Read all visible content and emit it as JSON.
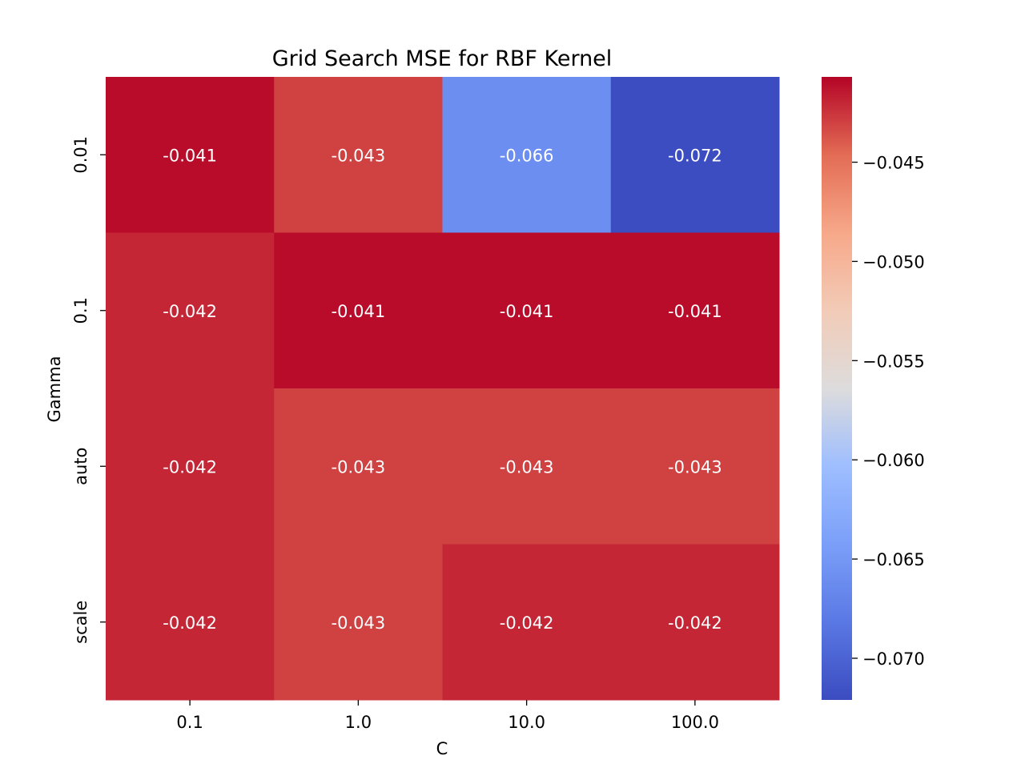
{
  "chart_data": {
    "type": "heatmap",
    "title": "Grid Search MSE for RBF Kernel",
    "xlabel": "C",
    "ylabel": "Gamma",
    "x_categories": [
      "0.1",
      "1.0",
      "10.0",
      "100.0"
    ],
    "y_categories": [
      "0.01",
      "0.1",
      "auto",
      "scale"
    ],
    "values": [
      [
        -0.041,
        -0.043,
        -0.066,
        -0.072
      ],
      [
        -0.042,
        -0.041,
        -0.041,
        -0.041
      ],
      [
        -0.042,
        -0.043,
        -0.043,
        -0.043
      ],
      [
        -0.042,
        -0.043,
        -0.042,
        -0.042
      ]
    ],
    "cell_labels": [
      [
        "-0.041",
        "-0.043",
        "-0.066",
        "-0.072"
      ],
      [
        "-0.042",
        "-0.041",
        "-0.041",
        "-0.041"
      ],
      [
        "-0.042",
        "-0.043",
        "-0.043",
        "-0.043"
      ],
      [
        "-0.042",
        "-0.043",
        "-0.042",
        "-0.042"
      ]
    ],
    "colormap": "coolwarm",
    "vmin": -0.0721,
    "vmax": -0.0407,
    "colorbar": {
      "ticks": [
        -0.045,
        -0.05,
        -0.055,
        -0.06,
        -0.065,
        -0.07
      ],
      "tick_labels": [
        "−0.045",
        "−0.050",
        "−0.055",
        "−0.060",
        "−0.065",
        "−0.070"
      ],
      "placement": "right"
    },
    "grid": false
  }
}
